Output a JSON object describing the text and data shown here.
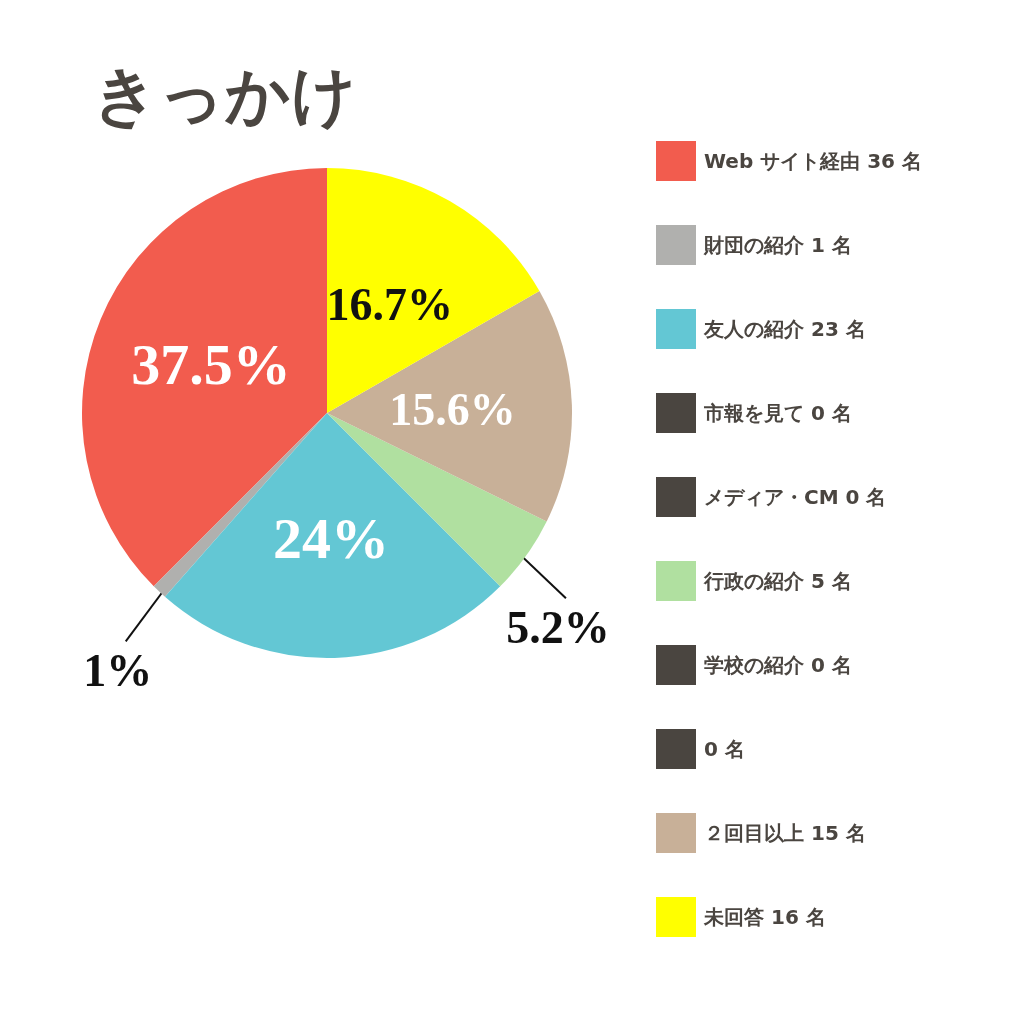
{
  "chart_data": {
    "type": "pie",
    "title": "きっかけ",
    "categories": [
      "Web サイト経由 36 名",
      "財団の紹介 1 名",
      "友人の紹介 23 名",
      "市報を見て 0 名",
      "メディア・CM 0 名",
      "行政の紹介 5 名",
      "学校の紹介 0 名",
      "0 名",
      "２回目以上 15 名",
      "未回答 16 名"
    ],
    "values": [
      37.5,
      1,
      24,
      0,
      0,
      5.2,
      0,
      0,
      15.6,
      16.7
    ],
    "colors": [
      "#f25c4e",
      "#b0b0ae",
      "#63c7d4",
      "#4a4540",
      "#4a4540",
      "#b0e0a0",
      "#4a4540",
      "#4a4540",
      "#c8b098",
      "#ffff00"
    ],
    "value_labels": [
      "37.5%",
      "1%",
      "24%",
      null,
      null,
      "5.2%",
      null,
      null,
      "15.6%",
      "16.7%"
    ],
    "legend": "right"
  }
}
